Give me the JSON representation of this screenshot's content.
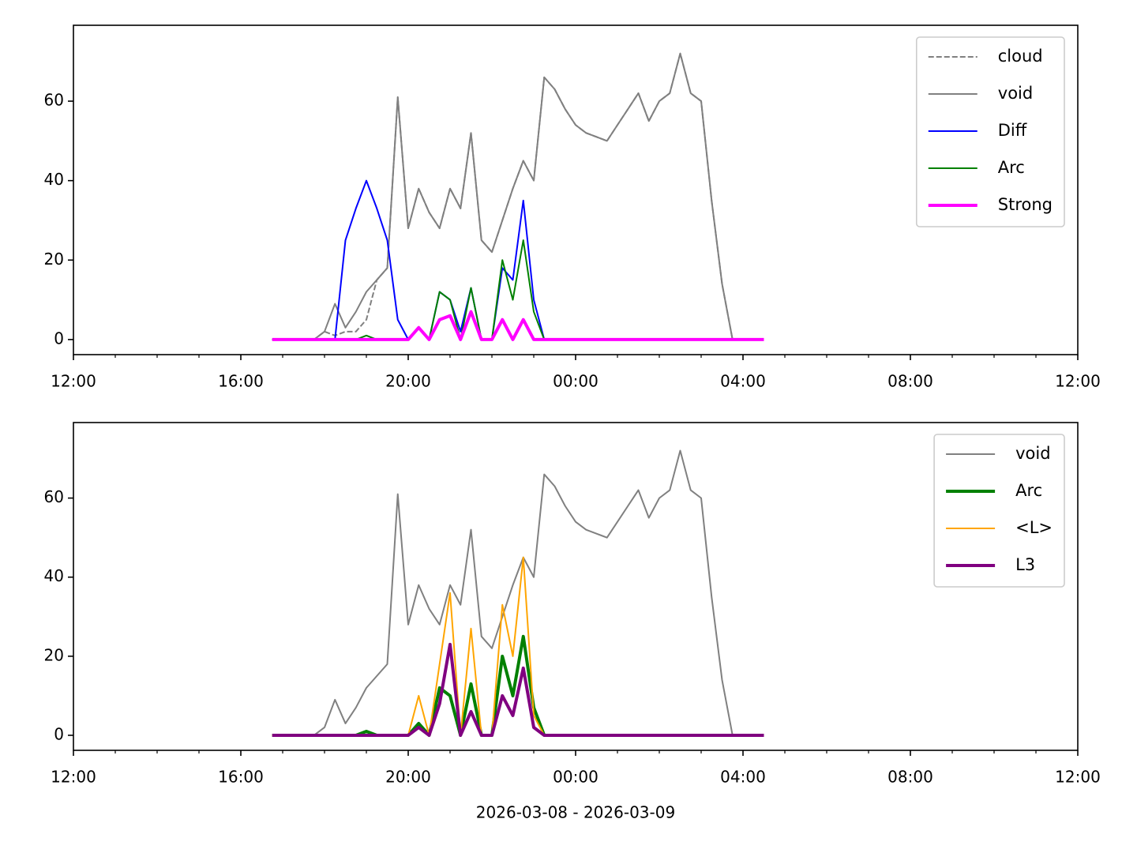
{
  "chart_data": [
    {
      "type": "line",
      "x": [
        285,
        300,
        315,
        330,
        345,
        360,
        375,
        390,
        405,
        420,
        435,
        450,
        465,
        480,
        495,
        510,
        525,
        540,
        555,
        570,
        585,
        600,
        615,
        630,
        645,
        660,
        675,
        690,
        705,
        720,
        735,
        750,
        765,
        780,
        795,
        810,
        825,
        840,
        855,
        870,
        885,
        900,
        915,
        930,
        945,
        960,
        975,
        990
      ],
      "series": [
        {
          "name": "cloud",
          "color": "#808080",
          "linewidth": 1,
          "dashed": true,
          "values": [
            0,
            0,
            0,
            0,
            0,
            2,
            1,
            2,
            2,
            5,
            15,
            18,
            61,
            28,
            38,
            32,
            28,
            38,
            33,
            52,
            25,
            22,
            30,
            38,
            45,
            40,
            66,
            63,
            58,
            54,
            52,
            51,
            50,
            54,
            58,
            62,
            55,
            60,
            62,
            72,
            62,
            60,
            35,
            14,
            0,
            0,
            0,
            0
          ]
        },
        {
          "name": "void",
          "color": "#808080",
          "linewidth": 1,
          "values": [
            0,
            0,
            0,
            0,
            0,
            2,
            9,
            3,
            7,
            12,
            15,
            18,
            61,
            28,
            38,
            32,
            28,
            38,
            33,
            52,
            25,
            22,
            30,
            38,
            45,
            40,
            66,
            63,
            58,
            54,
            52,
            51,
            50,
            54,
            58,
            62,
            55,
            60,
            62,
            72,
            62,
            60,
            35,
            14,
            0,
            0,
            0,
            0
          ]
        },
        {
          "name": "Diff",
          "color": "#0000ff",
          "linewidth": 1,
          "values": [
            0,
            0,
            0,
            0,
            0,
            0,
            0,
            25,
            33,
            40,
            33,
            25,
            5,
            0,
            3,
            0,
            12,
            10,
            2,
            13,
            0,
            0,
            18,
            15,
            35,
            10,
            0,
            0,
            0,
            0,
            0,
            0,
            0,
            0,
            0,
            0,
            0,
            0,
            0,
            0,
            0,
            0,
            0,
            0,
            0,
            0,
            0,
            0
          ]
        },
        {
          "name": "Arc",
          "color": "#008000",
          "linewidth": 1,
          "values": [
            0,
            0,
            0,
            0,
            0,
            0,
            0,
            0,
            0,
            1,
            0,
            0,
            0,
            0,
            3,
            0,
            12,
            10,
            0,
            13,
            0,
            0,
            20,
            10,
            25,
            7,
            0,
            0,
            0,
            0,
            0,
            0,
            0,
            0,
            0,
            0,
            0,
            0,
            0,
            0,
            0,
            0,
            0,
            0,
            0,
            0,
            0,
            0
          ]
        },
        {
          "name": "Strong",
          "color": "#ff00ff",
          "linewidth": 2,
          "values": [
            0,
            0,
            0,
            0,
            0,
            0,
            0,
            0,
            0,
            0,
            0,
            0,
            0,
            0,
            3,
            0,
            5,
            6,
            0,
            7,
            0,
            0,
            5,
            0,
            5,
            0,
            0,
            0,
            0,
            0,
            0,
            0,
            0,
            0,
            0,
            0,
            0,
            0,
            0,
            0,
            0,
            0,
            0,
            0,
            0,
            0,
            0,
            0
          ]
        }
      ],
      "xlim": [
        0,
        1440
      ],
      "xticks": [
        {
          "value": 0,
          "label": "12:00"
        },
        {
          "value": 240,
          "label": "16:00"
        },
        {
          "value": 480,
          "label": "20:00"
        },
        {
          "value": 720,
          "label": "00:00"
        },
        {
          "value": 960,
          "label": "04:00"
        },
        {
          "value": 1200,
          "label": "08:00"
        },
        {
          "value": 1440,
          "label": "12:00"
        }
      ],
      "xminorticks": [
        60,
        120,
        180,
        300,
        360,
        420,
        540,
        600,
        660,
        780,
        840,
        900,
        1020,
        1080,
        1140,
        1260,
        1320,
        1380
      ],
      "ylim": [
        -3.8,
        79.1
      ],
      "yticks": [
        0,
        20,
        40,
        60
      ],
      "legend": "upper right"
    },
    {
      "type": "line",
      "x": [
        285,
        300,
        315,
        330,
        345,
        360,
        375,
        390,
        405,
        420,
        435,
        450,
        465,
        480,
        495,
        510,
        525,
        540,
        555,
        570,
        585,
        600,
        615,
        630,
        645,
        660,
        675,
        690,
        705,
        720,
        735,
        750,
        765,
        780,
        795,
        810,
        825,
        840,
        855,
        870,
        885,
        900,
        915,
        930,
        945,
        960,
        975,
        990
      ],
      "series": [
        {
          "name": "void",
          "color": "#808080",
          "linewidth": 1,
          "values": [
            0,
            0,
            0,
            0,
            0,
            2,
            9,
            3,
            7,
            12,
            15,
            18,
            61,
            28,
            38,
            32,
            28,
            38,
            33,
            52,
            25,
            22,
            30,
            38,
            45,
            40,
            66,
            63,
            58,
            54,
            52,
            51,
            50,
            54,
            58,
            62,
            55,
            60,
            62,
            72,
            62,
            60,
            35,
            14,
            0,
            0,
            0,
            0
          ]
        },
        {
          "name": "Arc",
          "color": "#008000",
          "linewidth": 2,
          "values": [
            0,
            0,
            0,
            0,
            0,
            0,
            0,
            0,
            0,
            1,
            0,
            0,
            0,
            0,
            3,
            0,
            12,
            10,
            0,
            13,
            0,
            0,
            20,
            10,
            25,
            7,
            0,
            0,
            0,
            0,
            0,
            0,
            0,
            0,
            0,
            0,
            0,
            0,
            0,
            0,
            0,
            0,
            0,
            0,
            0,
            0,
            0,
            0
          ]
        },
        {
          "name": "<L>",
          "color": "#ffa500",
          "linewidth": 1,
          "values": [
            0,
            0,
            0,
            0,
            0,
            0,
            0,
            0,
            0,
            0,
            0,
            0,
            0,
            0,
            10,
            0,
            18,
            36,
            0,
            27,
            0,
            0,
            33,
            20,
            45,
            5,
            0,
            0,
            0,
            0,
            0,
            0,
            0,
            0,
            0,
            0,
            0,
            0,
            0,
            0,
            0,
            0,
            0,
            0,
            0,
            0,
            0,
            0
          ]
        },
        {
          "name": "L3",
          "color": "#800080",
          "linewidth": 2,
          "values": [
            0,
            0,
            0,
            0,
            0,
            0,
            0,
            0,
            0,
            0,
            0,
            0,
            0,
            0,
            2,
            0,
            8,
            23,
            0,
            6,
            0,
            0,
            10,
            5,
            17,
            2,
            0,
            0,
            0,
            0,
            0,
            0,
            0,
            0,
            0,
            0,
            0,
            0,
            0,
            0,
            0,
            0,
            0,
            0,
            0,
            0,
            0,
            0
          ]
        }
      ],
      "xlim": [
        0,
        1440
      ],
      "xticks": [
        {
          "value": 0,
          "label": "12:00"
        },
        {
          "value": 240,
          "label": "16:00"
        },
        {
          "value": 480,
          "label": "20:00"
        },
        {
          "value": 720,
          "label": "00:00"
        },
        {
          "value": 960,
          "label": "04:00"
        },
        {
          "value": 1200,
          "label": "08:00"
        },
        {
          "value": 1440,
          "label": "12:00"
        }
      ],
      "xminorticks": [
        60,
        120,
        180,
        300,
        360,
        420,
        540,
        600,
        660,
        780,
        840,
        900,
        1020,
        1080,
        1140,
        1260,
        1320,
        1380
      ],
      "ylim": [
        -3.8,
        79.1
      ],
      "yticks": [
        0,
        20,
        40,
        60
      ],
      "legend": "upper right",
      "xlabel": "2026-03-08 - 2026-03-09"
    }
  ]
}
